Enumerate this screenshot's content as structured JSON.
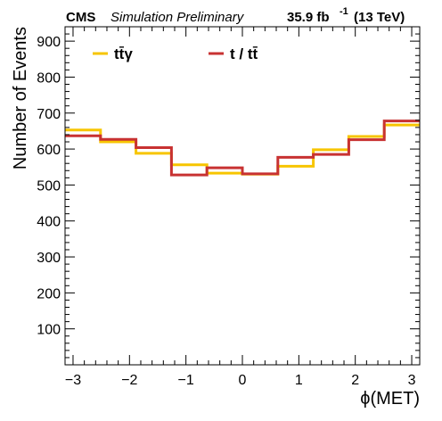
{
  "header": {
    "experiment": "CMS",
    "status": "Simulation Preliminary",
    "lumi_value": "35.9 fb",
    "lumi_exp": "-1",
    "energy": "(13 TeV)"
  },
  "chart_data": {
    "type": "line",
    "style": "step-histogram",
    "xlabel": "ϕ(MET)",
    "ylabel": "Number of Events",
    "xlim": [
      -3.14159,
      3.14159
    ],
    "ylim": [
      0,
      940
    ],
    "x_ticks": [
      -3,
      -2,
      -1,
      0,
      1,
      2,
      3
    ],
    "x_tick_labels": [
      "−3",
      "−2",
      "−1",
      "0",
      "1",
      "2",
      "3"
    ],
    "y_ticks": [
      100,
      200,
      300,
      400,
      500,
      600,
      700,
      800,
      900
    ],
    "y_tick_labels": [
      "100",
      "200",
      "300",
      "400",
      "500",
      "600",
      "700",
      "800",
      "900"
    ],
    "bin_edges": [
      -3.14159,
      -2.51327,
      -1.88496,
      -1.25664,
      -0.62832,
      0,
      0.62832,
      1.25664,
      1.88496,
      2.51327,
      3.14159
    ],
    "grid": false,
    "legend_position": "top-left, horizontal",
    "series": [
      {
        "name": "tt̄γ",
        "color": "#F7C500",
        "values": [
          653,
          620,
          588,
          556,
          533,
          530,
          552,
          598,
          635,
          667
        ]
      },
      {
        "name": "t / tt̄",
        "color": "#C83232",
        "values": [
          637,
          627,
          604,
          528,
          548,
          531,
          577,
          585,
          626,
          678
        ]
      }
    ]
  }
}
